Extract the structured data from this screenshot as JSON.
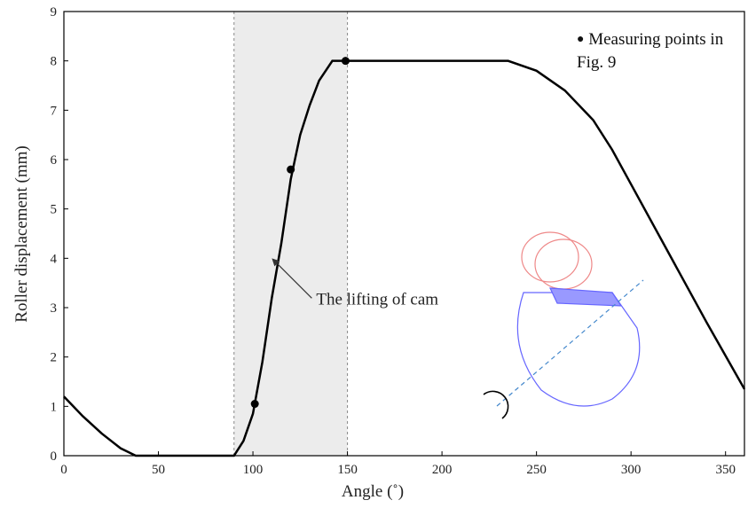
{
  "chart_data": {
    "type": "line",
    "x_label": "Angle (˚)",
    "y_label": "Roller displacement  (mm)",
    "xlim": [
      0,
      360
    ],
    "ylim": [
      0,
      9
    ],
    "xticks": [
      0,
      50,
      100,
      150,
      200,
      250,
      300,
      350
    ],
    "yticks": [
      0,
      1,
      2,
      3,
      4,
      5,
      6,
      7,
      8,
      9
    ],
    "color": "#000000",
    "x": [
      0,
      10,
      20,
      30,
      38,
      90,
      95,
      100,
      105,
      110,
      115,
      120,
      125,
      130,
      135,
      142,
      235,
      250,
      265,
      280,
      290,
      300,
      320,
      340,
      360
    ],
    "values": [
      1.2,
      0.8,
      0.45,
      0.15,
      0,
      0,
      0.3,
      0.85,
      1.9,
      3.2,
      4.3,
      5.6,
      6.5,
      7.1,
      7.6,
      8,
      8,
      7.8,
      7.4,
      6.8,
      6.2,
      5.5,
      4.1,
      2.7,
      1.35
    ],
    "markers": {
      "name": "Measuring points in Fig. 9",
      "x": [
        101,
        120,
        149
      ],
      "values": [
        1.05,
        5.8,
        8.0
      ]
    },
    "shaded_range": [
      90,
      150
    ],
    "annotation": {
      "text": "The lifting of cam",
      "x": 110,
      "y": 4.0
    }
  }
}
